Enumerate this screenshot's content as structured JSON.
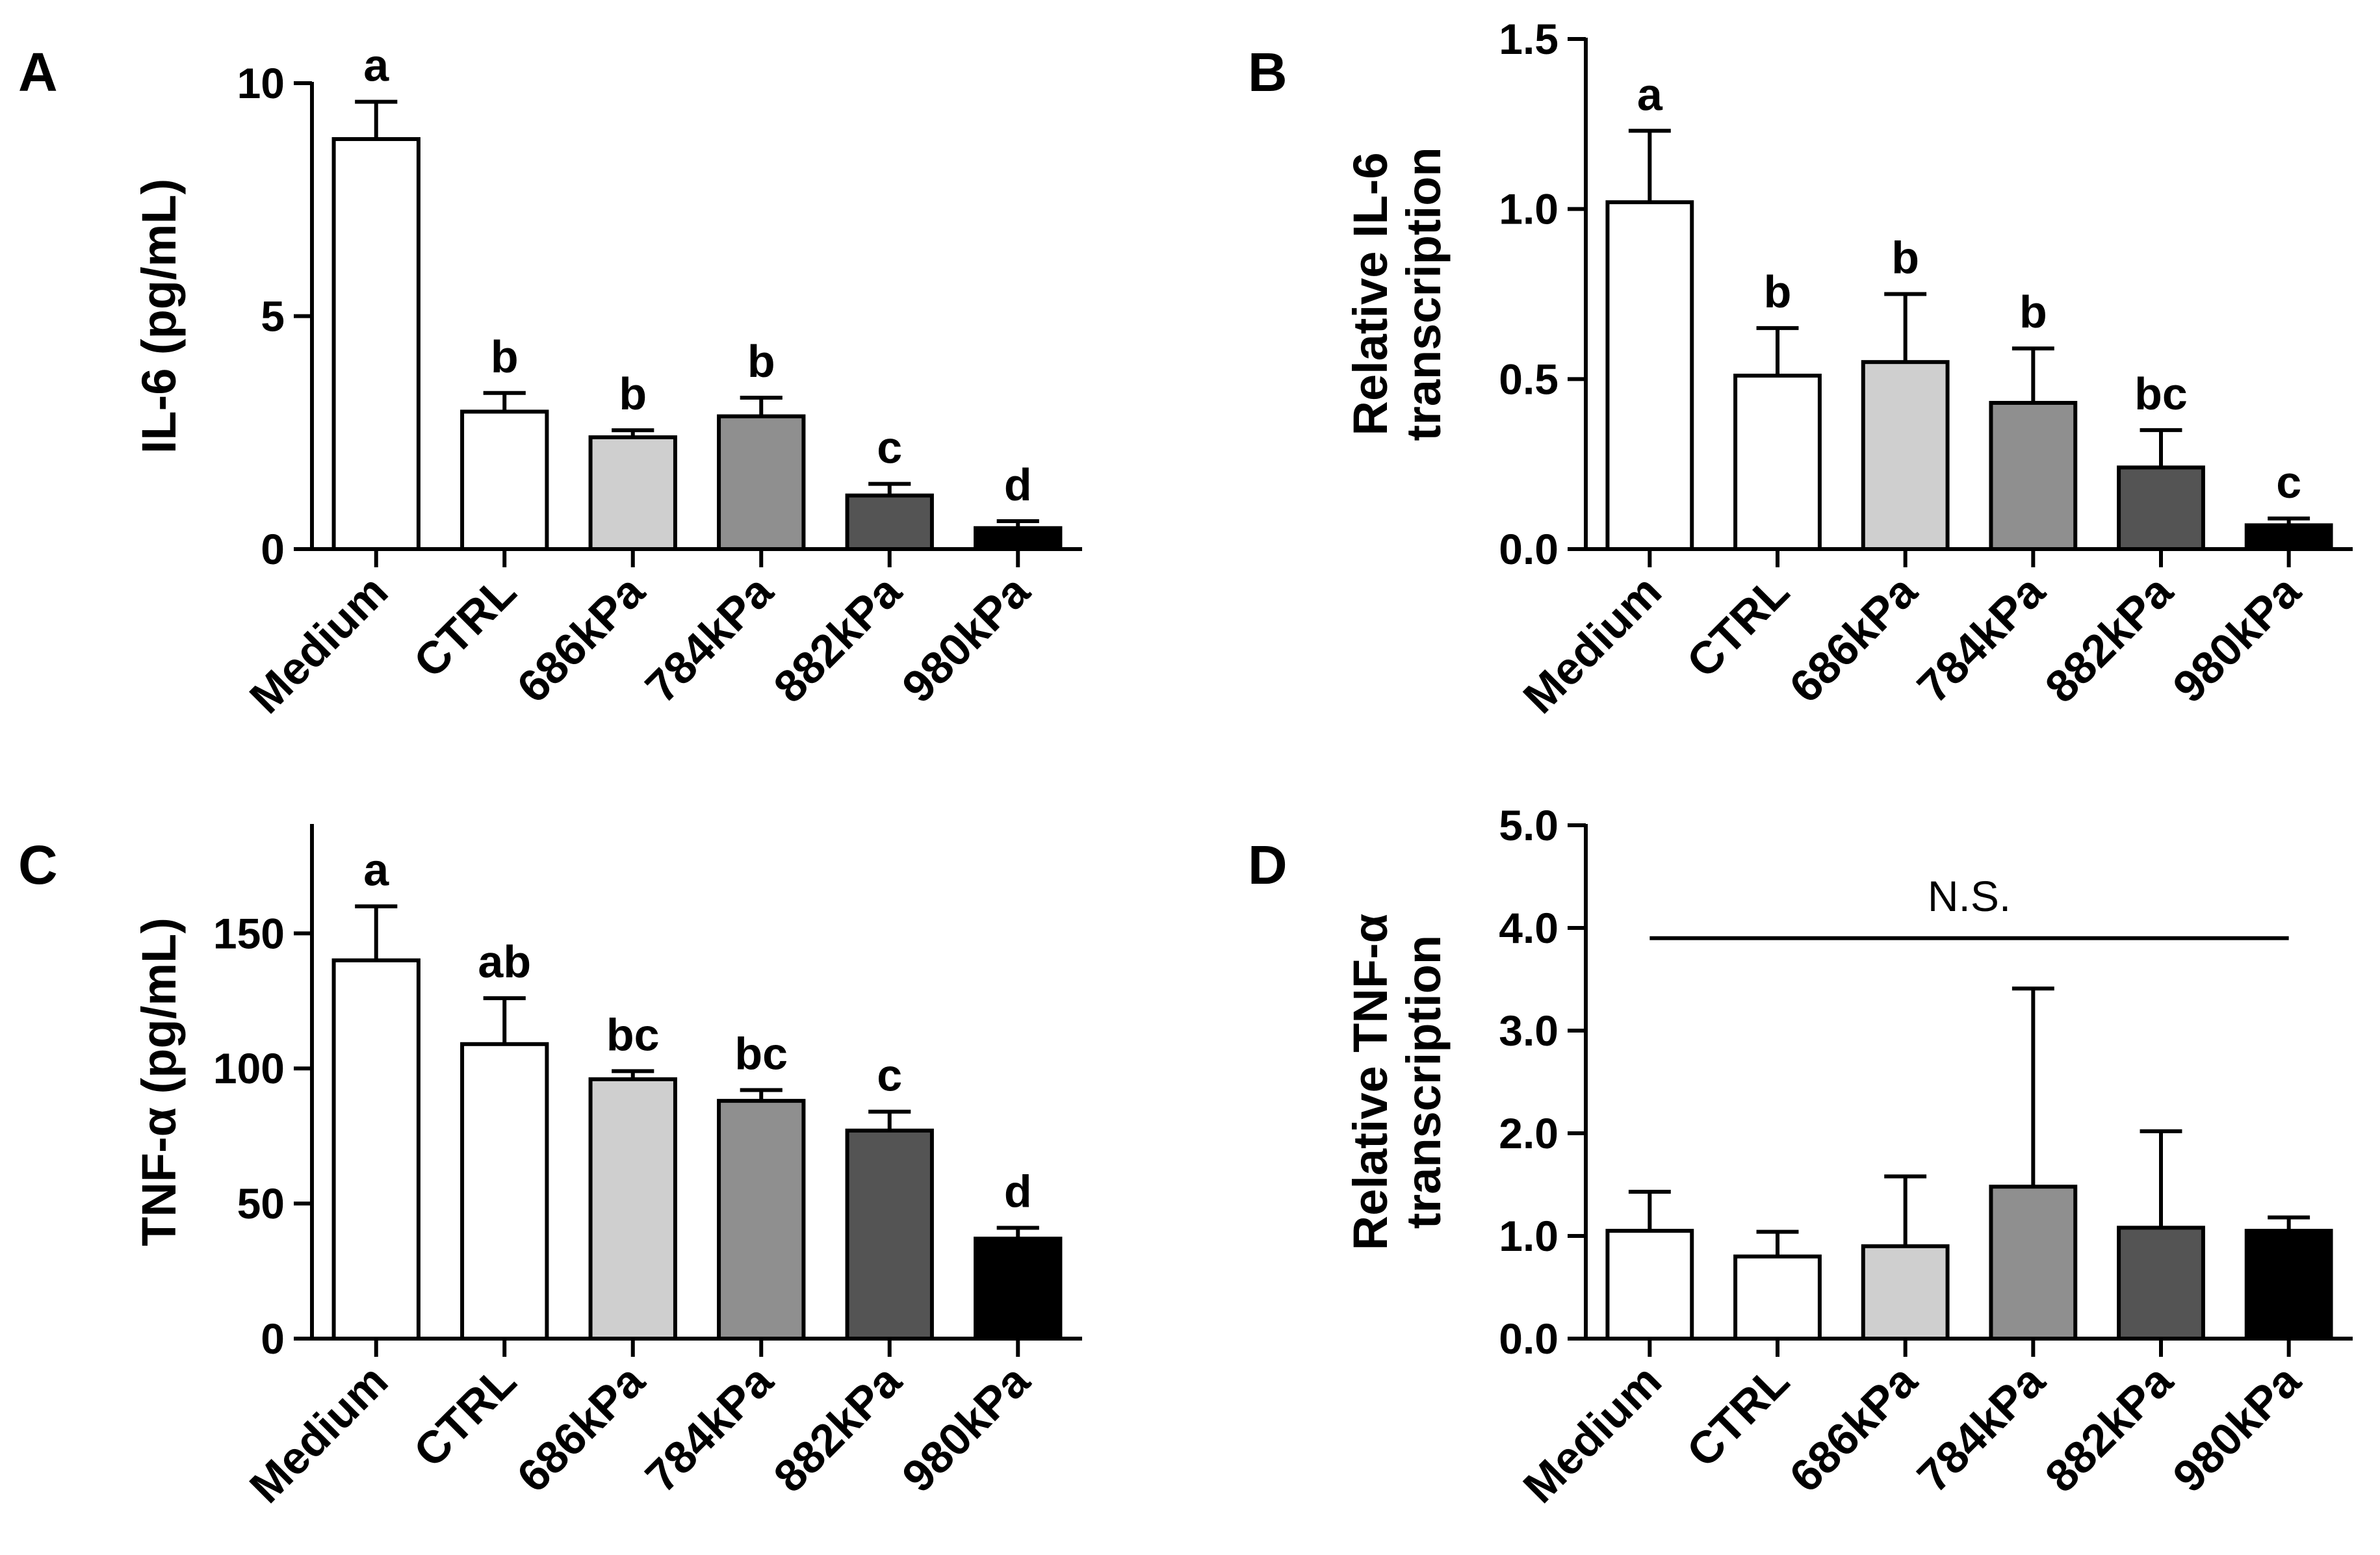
{
  "figure": {
    "categories": [
      "Medium",
      "CTRL",
      "686kPa",
      "784kPa",
      "882kPa",
      "980kPa"
    ],
    "colors": {
      "Medium": "#ffffff",
      "CTRL": "#ffffff",
      "686kPa": "#cfcfcf",
      "784kPa": "#8f8f8f",
      "882kPa": "#545454",
      "980kPa": "#000000"
    }
  },
  "chart_data": [
    {
      "panel": "A",
      "type": "bar",
      "ylabel": "IL-6 (pg/mL)",
      "ylabel_lines": [
        "IL-6 (pg/mL)"
      ],
      "categories": [
        "Medium",
        "CTRL",
        "686kPa",
        "784kPa",
        "882kPa",
        "980kPa"
      ],
      "values": [
        8.8,
        2.95,
        2.4,
        2.85,
        1.15,
        0.45
      ],
      "errors": [
        0.8,
        0.4,
        0.15,
        0.4,
        0.25,
        0.15
      ],
      "letters": [
        "a",
        "b",
        "b",
        "b",
        "c",
        "d"
      ],
      "ylim": [
        0,
        10
      ],
      "yticks": [
        0,
        5,
        10
      ],
      "ytick_labels": [
        "0",
        "5",
        "10"
      ],
      "bar_colors": [
        "#ffffff",
        "#ffffff",
        "#cfcfcf",
        "#8f8f8f",
        "#545454",
        "#000000"
      ]
    },
    {
      "panel": "B",
      "type": "bar",
      "ylabel": "Relative IL-6 transcription",
      "ylabel_lines": [
        "Relative IL-6",
        "transcription"
      ],
      "categories": [
        "Medium",
        "CTRL",
        "686kPa",
        "784kPa",
        "882kPa",
        "980kPa"
      ],
      "values": [
        1.02,
        0.51,
        0.55,
        0.43,
        0.24,
        0.07
      ],
      "errors": [
        0.21,
        0.14,
        0.2,
        0.16,
        0.11,
        0.02
      ],
      "letters": [
        "a",
        "b",
        "b",
        "b",
        "bc",
        "c"
      ],
      "ylim": [
        0,
        1.5
      ],
      "yticks": [
        0,
        0.5,
        1.0,
        1.5
      ],
      "ytick_labels": [
        "0.0",
        "0.5",
        "1.0",
        "1.5"
      ],
      "bar_colors": [
        "#ffffff",
        "#ffffff",
        "#cfcfcf",
        "#8f8f8f",
        "#545454",
        "#000000"
      ]
    },
    {
      "panel": "C",
      "type": "bar",
      "ylabel": "TNF-α (pg/mL)",
      "ylabel_lines": [
        "TNF-α (pg/mL)"
      ],
      "categories": [
        "Medium",
        "CTRL",
        "686kPa",
        "784kPa",
        "882kPa",
        "980kPa"
      ],
      "values": [
        140,
        109,
        96,
        88,
        77,
        37
      ],
      "errors": [
        20,
        17,
        3,
        4,
        7,
        4
      ],
      "letters": [
        "a",
        "ab",
        "bc",
        "bc",
        "c",
        "d"
      ],
      "ylim": [
        0,
        190
      ],
      "yticks": [
        0,
        50,
        100,
        150
      ],
      "ytick_labels": [
        "0",
        "50",
        "100",
        "150"
      ],
      "bar_colors": [
        "#ffffff",
        "#ffffff",
        "#cfcfcf",
        "#8f8f8f",
        "#545454",
        "#000000"
      ]
    },
    {
      "panel": "D",
      "type": "bar",
      "ylabel": "Relative TNF-α transcription",
      "ylabel_lines": [
        "Relative TNF-α",
        "transcription"
      ],
      "categories": [
        "Medium",
        "CTRL",
        "686kPa",
        "784kPa",
        "882kPa",
        "980kPa"
      ],
      "values": [
        1.05,
        0.8,
        0.9,
        1.48,
        1.08,
        1.05
      ],
      "errors": [
        0.38,
        0.24,
        0.68,
        1.93,
        0.94,
        0.13
      ],
      "letters": [],
      "ylim": [
        0,
        5.0
      ],
      "yticks": [
        0,
        1.0,
        2.0,
        3.0,
        4.0,
        5.0
      ],
      "ytick_labels": [
        "0.0",
        "1.0",
        "2.0",
        "3.0",
        "4.0",
        "5.0"
      ],
      "bar_colors": [
        "#ffffff",
        "#ffffff",
        "#cfcfcf",
        "#8f8f8f",
        "#545454",
        "#000000"
      ],
      "annotation": "N.S.",
      "annotation_line_y": 3.9
    }
  ]
}
